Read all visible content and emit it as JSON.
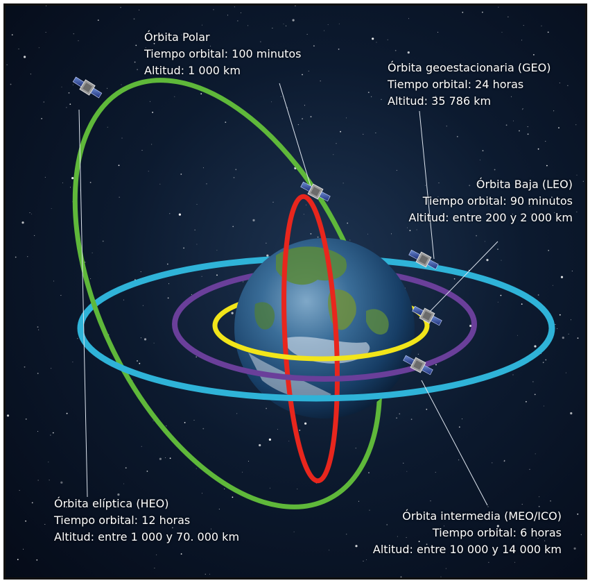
{
  "colors": {
    "space": "#0a1730",
    "polar_orbit": "#e8261d",
    "elliptic_orbit": "#5fb83a",
    "geo_orbit": "#2fb3d8",
    "meo_orbit": "#6a3f9a",
    "leo_orbit": "#f2e51a",
    "label_text": "#ffffff"
  },
  "icons": [
    "satellite-icon",
    "earth-globe-icon"
  ],
  "labels": {
    "polar": {
      "name": "Órbita Polar",
      "time": "Tiempo orbital: 100 minutos",
      "altitude": "Altitud: 1 000 km"
    },
    "geo": {
      "name": "Órbita geoestacionaria (GEO)",
      "time": "Tiempo orbital: 24 horas",
      "altitude": "Altitud: 35 786 km"
    },
    "leo": {
      "name": "Órbita Baja (LEO)",
      "time": "Tiempo orbital: 90 minutos",
      "altitude": "Altitud: entre 200 y 2 000 km"
    },
    "heo": {
      "name": "Órbita elíptica (HEO)",
      "time": "Tiempo orbital: 12 horas",
      "altitude": "Altitud: entre 1 000 y 70. 000 km"
    },
    "meo": {
      "name": "Órbita intermedia (MEO/ICO)",
      "time": "Tiempo orbital: 6 horas",
      "altitude": "Altitud: entre 10 000 y 14 000 km"
    }
  }
}
